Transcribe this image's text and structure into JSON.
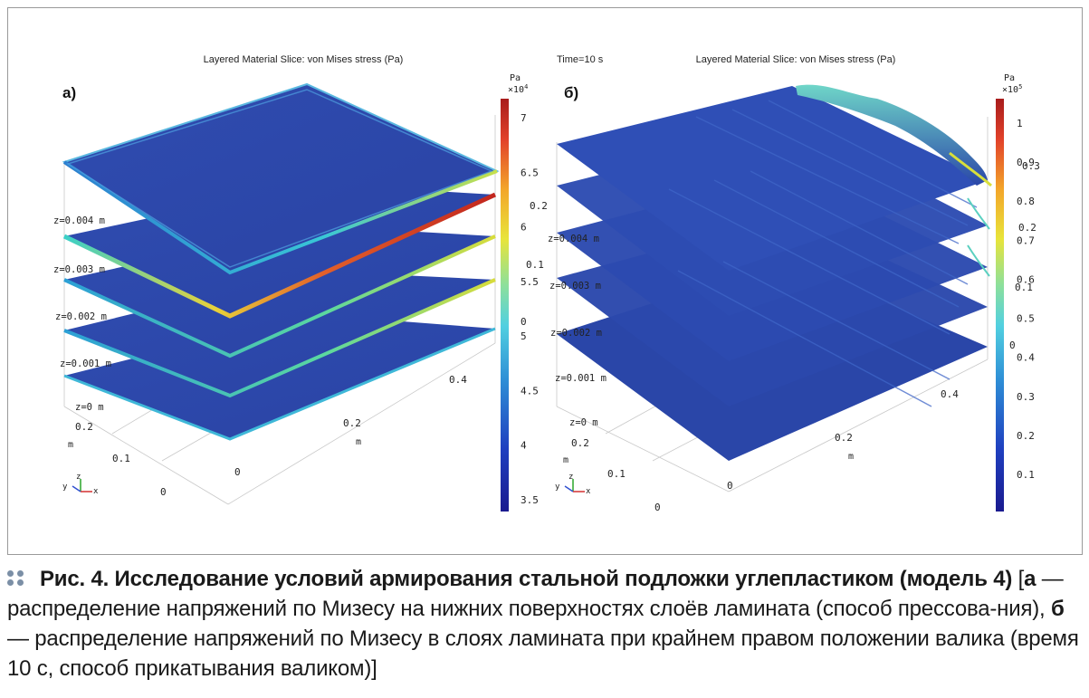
{
  "panel_a": {
    "title": "Layered Material Slice: von Mises stress (Pa)",
    "letter": "а)",
    "unit": "Pa",
    "multiplier": "×10",
    "exponent": "4",
    "colorbar_ticks": [
      "7",
      "6.5",
      "6",
      "5.5",
      "5",
      "4.5",
      "4",
      "3.5"
    ],
    "stray_ticks": [
      "0.2",
      "0.1",
      "0"
    ],
    "z_labels": [
      "z=0.004 m",
      "z=0.003 m",
      "z=0.002 m",
      "z=0.001 m",
      "z=0 m"
    ],
    "axis_ticks": [
      "0.4",
      "0.2",
      "0",
      "0.2",
      "0.1",
      "0"
    ],
    "axis_units": [
      "m",
      "m"
    ],
    "triad": [
      "z",
      "y",
      "x"
    ]
  },
  "panel_b": {
    "time": "Time=10 s",
    "title": "Layered Material Slice: von Mises stress (Pa)",
    "letter": "б)",
    "unit": "Pa",
    "multiplier": "×10",
    "exponent": "5",
    "colorbar_ticks": [
      "1",
      "0.9",
      "0.8",
      "0.7",
      "0.6",
      "0.5",
      "0.4",
      "0.3",
      "0.2",
      "0.1"
    ],
    "stray_ticks": [
      "0.3",
      "0.2",
      "0.1",
      "0"
    ],
    "z_labels": [
      "z=0.004 m",
      "z=0.003 m",
      "z=0.002 m",
      "z=0.001 m",
      "z=0 m"
    ],
    "axis_ticks": [
      "0.4",
      "0.2",
      "0",
      "0.2",
      "0.1",
      "0"
    ],
    "axis_units": [
      "m",
      "m"
    ],
    "triad": [
      "z",
      "y",
      "x"
    ]
  },
  "colors": {
    "layer_blue": "#2a46a8",
    "jet": [
      "#00007f",
      "#0000ff",
      "#007fff",
      "#00ffff",
      "#7fff7f",
      "#ffff00",
      "#ff7f00",
      "#ff0000",
      "#7f0000"
    ]
  },
  "caption": {
    "lead": "Рис. 4. Исследование условий армирования стальной подложки углепластиком (модель 4)",
    "bracket_open": " [",
    "a_letter": "а",
    "a_text": " — распределение напряжений по Мизесу на нижних поверхностях слоёв ламината (способ прессова-ния), ",
    "b_letter": "б",
    "b_text": " — распределение напряжений по Мизесу в слоях ламината при крайнем правом положении валика (время 10 с, способ прикатывания валиком)]"
  }
}
